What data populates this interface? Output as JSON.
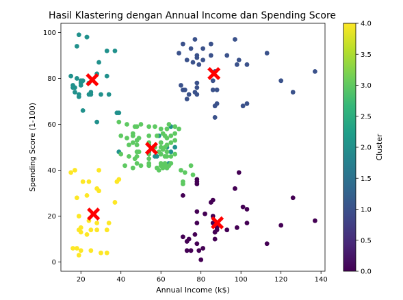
{
  "chart_data": {
    "type": "scatter",
    "title": "Hasil Klastering dengan Annual Income dan Spending Score",
    "xlabel": "Annual Income (k$)",
    "ylabel": "Spending Score (1-100)",
    "xlim": [
      10,
      142
    ],
    "ylim": [
      -4,
      104
    ],
    "xticks": [
      20,
      40,
      60,
      80,
      100,
      120,
      140
    ],
    "yticks": [
      0,
      20,
      40,
      60,
      80,
      100
    ],
    "colorbar": {
      "label": "Cluster",
      "range": [
        0,
        4
      ],
      "ticks": [
        "0.0",
        "0.5",
        "1.0",
        "1.5",
        "2.0",
        "2.5",
        "3.0",
        "3.5",
        "4.0"
      ],
      "colormap": "viridis",
      "stops": [
        "#440154",
        "#482878",
        "#3e4989",
        "#31688e",
        "#26828e",
        "#1f9e89",
        "#35b779",
        "#6ece58",
        "#b5de2b",
        "#fde725"
      ]
    },
    "cluster_colors": [
      "#440154",
      "#3b528b",
      "#21918c",
      "#5ec962",
      "#fde725"
    ],
    "centroid_color": "#ff0000",
    "grid": false,
    "series": [
      {
        "cluster": 0,
        "x": [
          78,
          78,
          80,
          82,
          86,
          86,
          87,
          87,
          88,
          71,
          71,
          73,
          73,
          74,
          75,
          77,
          78,
          78,
          78,
          78,
          79,
          81,
          85,
          86,
          87,
          88,
          93,
          97,
          98,
          99,
          101,
          103,
          103,
          113,
          120,
          126,
          137
        ],
        "y": [
          36,
          34,
          1,
          21,
          27,
          17,
          13,
          10,
          15,
          29,
          11,
          9,
          5,
          10,
          5,
          12,
          35,
          22,
          17,
          8,
          5,
          6,
          26,
          20,
          13,
          14,
          14,
          32,
          15,
          39,
          24,
          17,
          23,
          8,
          16,
          28,
          18
        ]
      },
      {
        "cluster": 1,
        "x": [
          69,
          70,
          71,
          71,
          72,
          73,
          73,
          74,
          75,
          76,
          77,
          77,
          78,
          78,
          78,
          78,
          78,
          79,
          81,
          85,
          86,
          87,
          87,
          88,
          88,
          93,
          97,
          98,
          99,
          101,
          103,
          103,
          113,
          120,
          126,
          137,
          81,
          85,
          86,
          87
        ],
        "y": [
          91,
          77,
          95,
          75,
          75,
          71,
          88,
          73,
          93,
          87,
          97,
          74,
          76,
          89,
          78,
          73,
          90,
          86,
          88,
          90,
          79,
          83,
          63,
          75,
          69,
          90,
          97,
          86,
          88,
          68,
          69,
          86,
          91,
          79,
          74,
          83,
          93,
          95,
          75,
          68
        ]
      },
      {
        "cluster": 2,
        "x": [
          15,
          16,
          17,
          18,
          19,
          19,
          20,
          20,
          21,
          23,
          24,
          25,
          28,
          28,
          29,
          30,
          33,
          33,
          34,
          37,
          38,
          39,
          39,
          16,
          17,
          18,
          19,
          20,
          21,
          23,
          24,
          25,
          54,
          54,
          57,
          58,
          59,
          60,
          60,
          62,
          63,
          63,
          64,
          65,
          65,
          67
        ],
        "y": [
          81,
          77,
          76,
          94,
          72,
          99,
          77,
          79,
          66,
          98,
          73,
          73,
          82,
          61,
          87,
          73,
          92,
          81,
          73,
          92,
          65,
          65,
          48,
          76,
          74,
          80,
          73,
          78,
          79,
          98,
          78,
          74,
          48,
          51,
          46,
          46,
          55,
          52,
          47,
          42,
          41,
          50,
          43,
          59,
          48,
          50
        ]
      },
      {
        "cluster": 3,
        "x": [
          39,
          40,
          40,
          42,
          43,
          43,
          44,
          44,
          46,
          46,
          46,
          46,
          47,
          47,
          48,
          48,
          48,
          48,
          48,
          48,
          49,
          49,
          50,
          50,
          54,
          54,
          54,
          54,
          54,
          54,
          54,
          54,
          57,
          57,
          58,
          58,
          59,
          59,
          60,
          60,
          60,
          60,
          60,
          60,
          61,
          61,
          62,
          62,
          62,
          62,
          63,
          63,
          63,
          63,
          63,
          63,
          64,
          64,
          65,
          65,
          65,
          65,
          67,
          67,
          67,
          67,
          69,
          70,
          71,
          71,
          72,
          75,
          76,
          61,
          62
        ],
        "y": [
          61,
          55,
          47,
          42,
          54,
          60,
          46,
          51,
          52,
          56,
          55,
          41,
          59,
          45,
          48,
          51,
          46,
          53,
          43,
          59,
          54,
          48,
          60,
          42,
          55,
          47,
          52,
          51,
          42,
          43,
          45,
          59,
          59,
          50,
          41,
          55,
          40,
          48,
          52,
          47,
          42,
          58,
          50,
          43,
          49,
          56,
          55,
          50,
          43,
          46,
          51,
          58,
          41,
          48,
          54,
          46,
          42,
          60,
          46,
          52,
          43,
          55,
          56,
          59,
          47,
          53,
          58,
          40,
          35,
          34,
          39,
          42,
          38,
          41,
          42
        ]
      },
      {
        "cluster": 4,
        "x": [
          15,
          16,
          17,
          18,
          19,
          19,
          20,
          20,
          21,
          23,
          24,
          25,
          28,
          28,
          29,
          30,
          33,
          33,
          34,
          37,
          38,
          39,
          18,
          19,
          20,
          23,
          24,
          25,
          28,
          29
        ],
        "y": [
          39,
          6,
          40,
          6,
          3,
          14,
          15,
          13,
          35,
          29,
          35,
          5,
          14,
          32,
          31,
          4,
          4,
          14,
          17,
          26,
          35,
          36,
          28,
          20,
          5,
          12,
          18,
          14,
          17,
          40
        ]
      }
    ],
    "centroids": {
      "x": [
        25.7,
        86.5,
        26.3,
        55.3,
        88.2
      ],
      "y": [
        79.4,
        82.1,
        20.9,
        49.5,
        17.1
      ]
    }
  }
}
